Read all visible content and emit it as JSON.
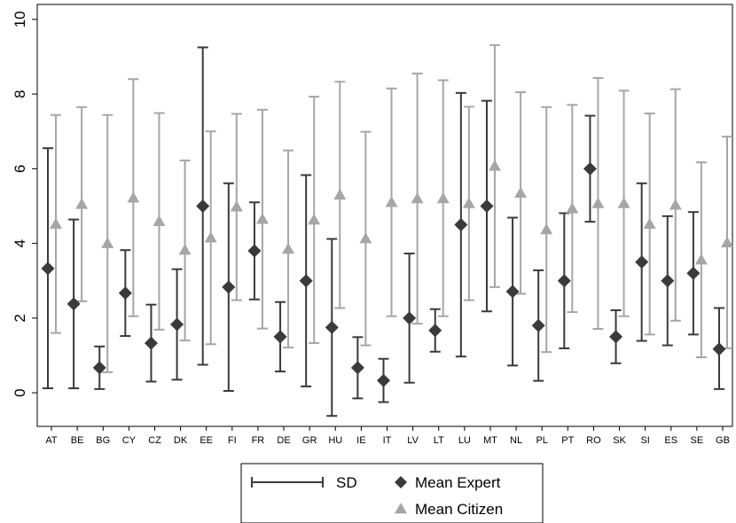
{
  "chart_data": {
    "type": "errorbar",
    "categories": [
      "AT",
      "BE",
      "BG",
      "CY",
      "CZ",
      "DK",
      "EE",
      "FI",
      "FR",
      "DE",
      "GR",
      "HU",
      "IE",
      "IT",
      "LV",
      "LT",
      "LU",
      "MT",
      "NL",
      "PL",
      "PT",
      "RO",
      "SK",
      "SI",
      "ES",
      "SE",
      "GB"
    ],
    "ylim": [
      -0.9,
      10.4
    ],
    "yticks": [
      0,
      2,
      4,
      6,
      8,
      10
    ],
    "grid": false,
    "series": [
      {
        "name": "Mean Expert",
        "marker": "diamond",
        "color": "#3a3a3a",
        "values": [
          3.33,
          2.38,
          0.67,
          2.67,
          1.33,
          1.83,
          5.0,
          2.83,
          3.8,
          1.5,
          3.0,
          1.75,
          0.67,
          0.33,
          2.0,
          1.67,
          4.5,
          5.0,
          2.71,
          1.8,
          3.0,
          6.0,
          1.5,
          3.5,
          3.0,
          3.2,
          1.17
        ],
        "sd_low": [
          0.12,
          0.12,
          0.1,
          1.52,
          0.3,
          0.35,
          0.75,
          0.05,
          2.5,
          0.57,
          0.17,
          -0.62,
          -0.15,
          -0.25,
          0.27,
          1.1,
          0.97,
          2.18,
          0.73,
          0.32,
          1.19,
          4.58,
          0.79,
          1.39,
          1.27,
          1.56,
          0.1
        ],
        "sd_high": [
          6.55,
          4.64,
          1.24,
          3.82,
          2.36,
          3.31,
          9.25,
          5.61,
          5.1,
          2.43,
          5.83,
          4.12,
          1.49,
          0.91,
          3.73,
          2.24,
          8.03,
          7.82,
          4.69,
          3.28,
          4.81,
          7.42,
          2.21,
          5.61,
          4.73,
          4.84,
          2.27
        ]
      },
      {
        "name": "Mean Citizen",
        "marker": "triangle",
        "color": "#a6a6a6",
        "values": [
          4.52,
          5.05,
          4.0,
          5.22,
          4.59,
          3.82,
          4.15,
          4.98,
          4.65,
          3.85,
          4.63,
          5.3,
          4.13,
          5.1,
          5.2,
          5.2,
          5.07,
          6.07,
          5.35,
          4.37,
          4.93,
          5.07,
          5.07,
          4.52,
          5.03,
          3.56,
          4.02
        ],
        "sd_low": [
          1.6,
          2.45,
          0.55,
          2.05,
          1.69,
          1.4,
          1.3,
          2.48,
          1.72,
          1.21,
          1.33,
          2.27,
          1.27,
          2.05,
          1.85,
          2.05,
          2.48,
          2.83,
          2.65,
          1.09,
          2.16,
          1.71,
          2.05,
          1.56,
          1.93,
          0.95,
          1.19
        ],
        "sd_high": [
          7.44,
          7.65,
          7.44,
          8.4,
          7.49,
          6.22,
          7.0,
          7.47,
          7.58,
          6.49,
          7.93,
          8.33,
          6.99,
          8.15,
          8.55,
          8.37,
          7.66,
          9.31,
          8.05,
          7.65,
          7.71,
          8.43,
          8.09,
          7.48,
          8.13,
          6.17,
          6.86
        ]
      }
    ],
    "legend": {
      "placement": "bottom",
      "entries": [
        {
          "symbol": "errorbar",
          "label": "SD"
        },
        {
          "symbol": "diamond",
          "label": "Mean Expert"
        },
        {
          "symbol": "triangle",
          "label": "Mean Citizen"
        }
      ]
    }
  }
}
